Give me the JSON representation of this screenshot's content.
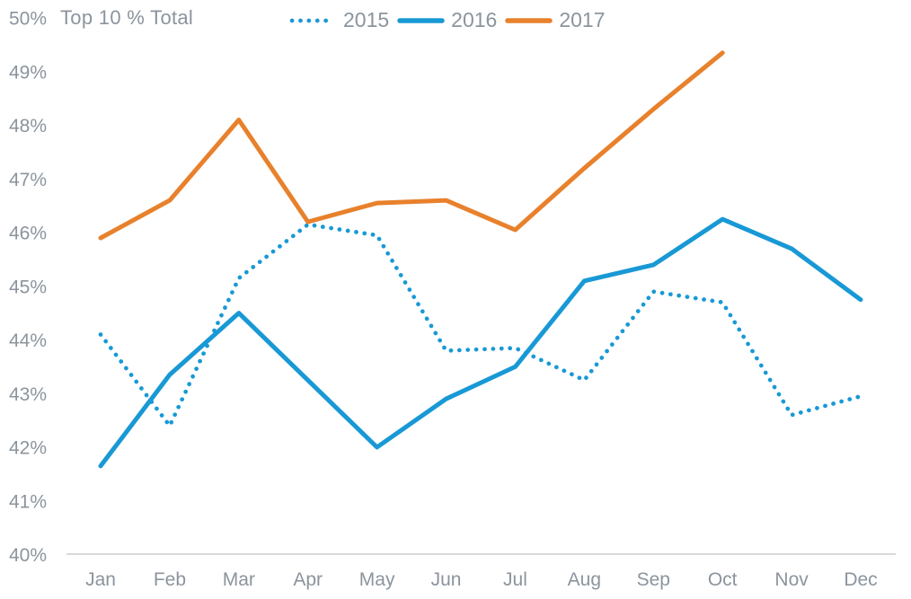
{
  "colors": {
    "blue": "#1899D5",
    "orange": "#E8812C",
    "text": "#8B949D",
    "axis_line": "#D9D9D9",
    "background": "#FFFFFF"
  },
  "chart_data": {
    "type": "line",
    "title": "Top 10 % Total",
    "categories": [
      "Jan",
      "Feb",
      "Mar",
      "Apr",
      "May",
      "Jun",
      "Jul",
      "Aug",
      "Sep",
      "Oct",
      "Nov",
      "Dec"
    ],
    "y_tick_labels": [
      "50%",
      "49%",
      "48%",
      "47%",
      "46%",
      "45%",
      "44%",
      "43%",
      "42%",
      "41%",
      "40%"
    ],
    "ylim": [
      40,
      50
    ],
    "y_unit": "%",
    "grid": false,
    "legend_position": "top",
    "series": [
      {
        "name": "2015",
        "line_style": "dotted",
        "color_key": "blue",
        "values": [
          44.1,
          42.4,
          45.15,
          46.15,
          45.95,
          43.8,
          43.85,
          43.25,
          44.9,
          44.7,
          42.6,
          42.95
        ]
      },
      {
        "name": "2016",
        "line_style": "solid",
        "color_key": "blue",
        "values": [
          41.65,
          43.35,
          44.5,
          43.25,
          42.0,
          42.9,
          43.5,
          45.1,
          45.4,
          46.25,
          45.7,
          44.75
        ]
      },
      {
        "name": "2017",
        "line_style": "solid",
        "color_key": "orange",
        "values": [
          45.9,
          46.6,
          48.1,
          46.2,
          46.55,
          46.6,
          46.05,
          47.2,
          48.3,
          49.35,
          null,
          null
        ]
      }
    ]
  }
}
